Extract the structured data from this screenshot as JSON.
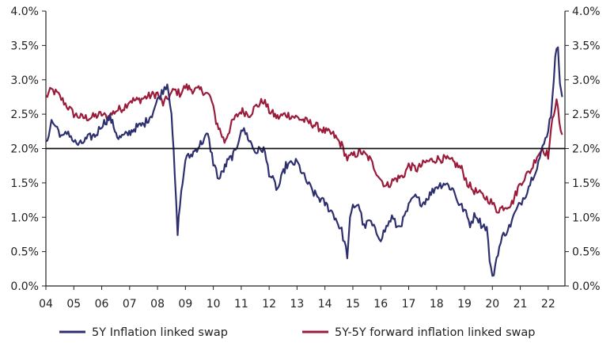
{
  "chart_data": {
    "type": "line",
    "title": "",
    "xlabel": "",
    "ylabel": "",
    "ylim": [
      0.0,
      4.0
    ],
    "xlim": [
      2004.0,
      2022.6
    ],
    "y_ticks": [
      "0.0%",
      "0.5%",
      "1.0%",
      "1.5%",
      "2.0%",
      "2.5%",
      "3.0%",
      "3.5%",
      "4.0%"
    ],
    "y_tick_values": [
      0,
      0.5,
      1.0,
      1.5,
      2.0,
      2.5,
      3.0,
      3.5,
      4.0
    ],
    "x_ticks": [
      "04",
      "05",
      "06",
      "07",
      "08",
      "09",
      "10",
      "11",
      "12",
      "13",
      "14",
      "15",
      "16",
      "17",
      "18",
      "19",
      "20",
      "21",
      "22"
    ],
    "x_tick_values": [
      2004,
      2005,
      2006,
      2007,
      2008,
      2009,
      2010,
      2011,
      2012,
      2013,
      2014,
      2015,
      2016,
      2017,
      2018,
      2019,
      2020,
      2021,
      2022
    ],
    "reference_line": 2.0,
    "legend_position": "bottom",
    "series": [
      {
        "name": "5Y Inflation linked swap",
        "color": "#2e2f6e",
        "x": [
          2004.0,
          2004.2,
          2004.4,
          2004.6,
          2004.8,
          2005.0,
          2005.2,
          2005.5,
          2005.8,
          2006.0,
          2006.3,
          2006.6,
          2006.9,
          2007.2,
          2007.5,
          2007.8,
          2008.0,
          2008.2,
          2008.35,
          2008.5,
          2008.62,
          2008.72,
          2008.8,
          2008.9,
          2009.0,
          2009.2,
          2009.5,
          2009.8,
          2010.0,
          2010.2,
          2010.5,
          2010.8,
          2011.0,
          2011.2,
          2011.5,
          2011.8,
          2012.0,
          2012.3,
          2012.6,
          2013.0,
          2013.3,
          2013.6,
          2014.0,
          2014.3,
          2014.6,
          2014.8,
          2014.9,
          2015.0,
          2015.2,
          2015.4,
          2015.6,
          2015.8,
          2016.0,
          2016.2,
          2016.4,
          2016.6,
          2016.8,
          2017.0,
          2017.2,
          2017.5,
          2017.8,
          2018.0,
          2018.3,
          2018.6,
          2018.8,
          2019.0,
          2019.2,
          2019.4,
          2019.6,
          2019.8,
          2019.9,
          2020.0,
          2020.2,
          2020.4,
          2020.6,
          2020.8,
          2021.0,
          2021.2,
          2021.4,
          2021.6,
          2021.8,
          2021.95,
          2022.1,
          2022.25,
          2022.35,
          2022.42,
          2022.5
        ],
        "values": [
          2.05,
          2.4,
          2.3,
          2.15,
          2.25,
          2.1,
          2.05,
          2.15,
          2.2,
          2.35,
          2.45,
          2.15,
          2.2,
          2.3,
          2.35,
          2.5,
          2.7,
          2.85,
          2.95,
          2.55,
          1.6,
          0.75,
          1.2,
          1.5,
          1.85,
          1.9,
          2.05,
          2.2,
          1.8,
          1.55,
          1.8,
          1.95,
          2.3,
          2.2,
          1.95,
          2.0,
          1.65,
          1.4,
          1.75,
          1.8,
          1.55,
          1.35,
          1.2,
          1.05,
          0.8,
          0.45,
          0.95,
          1.15,
          1.2,
          0.85,
          0.95,
          0.8,
          0.7,
          0.85,
          1.0,
          0.85,
          0.95,
          1.15,
          1.3,
          1.2,
          1.35,
          1.45,
          1.5,
          1.4,
          1.2,
          1.1,
          0.9,
          1.05,
          0.9,
          0.85,
          0.4,
          0.1,
          0.5,
          0.75,
          0.85,
          1.05,
          1.2,
          1.35,
          1.55,
          1.75,
          2.0,
          2.2,
          2.5,
          3.3,
          3.5,
          3.0,
          2.75
        ]
      },
      {
        "name": "5Y-5Y forward inflation linked swap",
        "color": "#9b1b3b",
        "x": [
          2004.0,
          2004.2,
          2004.4,
          2004.6,
          2004.8,
          2005.0,
          2005.3,
          2005.6,
          2006.0,
          2006.2,
          2006.5,
          2006.8,
          2007.0,
          2007.3,
          2007.6,
          2008.0,
          2008.2,
          2008.4,
          2008.6,
          2008.8,
          2009.0,
          2009.3,
          2009.6,
          2009.9,
          2010.1,
          2010.4,
          2010.7,
          2011.0,
          2011.3,
          2011.5,
          2011.8,
          2012.0,
          2012.3,
          2012.6,
          2013.0,
          2013.3,
          2013.6,
          2014.0,
          2014.3,
          2014.6,
          2014.8,
          2015.0,
          2015.3,
          2015.6,
          2015.8,
          2016.0,
          2016.2,
          2016.5,
          2016.8,
          2017.0,
          2017.3,
          2017.6,
          2018.0,
          2018.3,
          2018.6,
          2018.9,
          2019.1,
          2019.3,
          2019.5,
          2019.7,
          2019.9,
          2020.0,
          2020.15,
          2020.4,
          2020.7,
          2021.0,
          2021.2,
          2021.4,
          2021.6,
          2021.8,
          2022.0,
          2022.15,
          2022.3,
          2022.4,
          2022.5
        ],
        "values": [
          2.75,
          2.85,
          2.8,
          2.7,
          2.6,
          2.5,
          2.45,
          2.45,
          2.5,
          2.45,
          2.55,
          2.6,
          2.7,
          2.7,
          2.75,
          2.8,
          2.65,
          2.75,
          2.85,
          2.8,
          2.9,
          2.85,
          2.85,
          2.75,
          2.4,
          2.1,
          2.4,
          2.55,
          2.5,
          2.6,
          2.7,
          2.55,
          2.45,
          2.5,
          2.45,
          2.4,
          2.35,
          2.25,
          2.2,
          2.05,
          1.85,
          1.9,
          1.95,
          1.85,
          1.7,
          1.55,
          1.45,
          1.55,
          1.6,
          1.75,
          1.7,
          1.8,
          1.85,
          1.85,
          1.8,
          1.7,
          1.5,
          1.4,
          1.35,
          1.3,
          1.25,
          1.2,
          1.1,
          1.15,
          1.2,
          1.5,
          1.6,
          1.7,
          1.9,
          2.0,
          1.9,
          2.4,
          2.75,
          2.35,
          2.2
        ]
      }
    ]
  }
}
